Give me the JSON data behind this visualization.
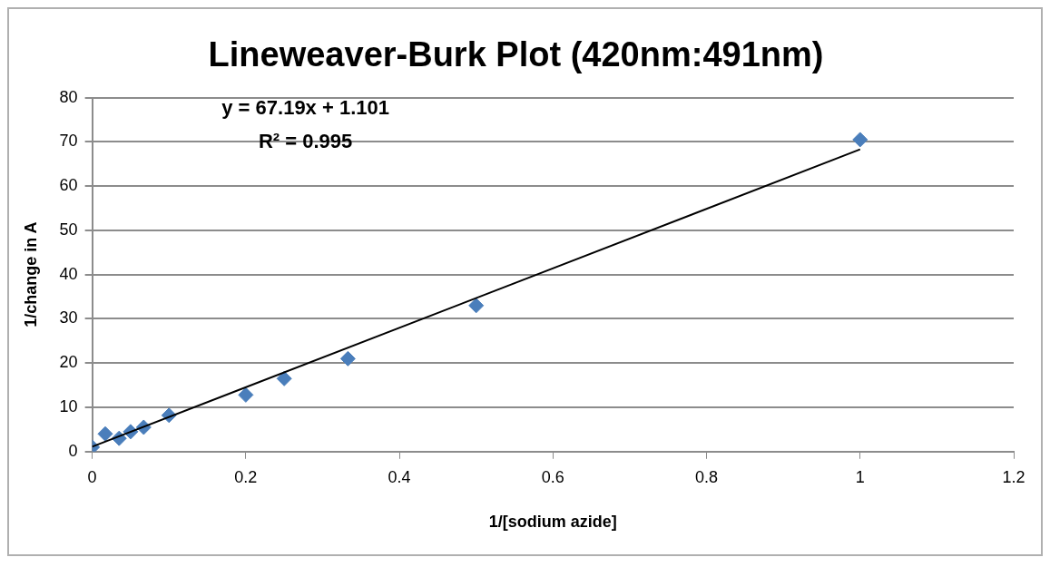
{
  "chart_data": {
    "type": "scatter",
    "title": "Lineweaver-Burk Plot (420nm:491nm)",
    "xlabel": "1/[sodium azide]",
    "ylabel": "1/change in A",
    "x": [
      0,
      0.017,
      0.035,
      0.05,
      0.067,
      0.1,
      0.2,
      0.25,
      0.333,
      0.5,
      1
    ],
    "series": [
      {
        "color": "#4a7ebb",
        "marker": "diamond",
        "values": [
          1,
          4,
          3,
          4.5,
          5.5,
          8.2,
          12.8,
          16.5,
          21,
          33,
          70.5
        ]
      },
      {
        "type": "line",
        "color": "#000000",
        "x": [
          0,
          1
        ],
        "values": [
          1.1,
          68.3
        ],
        "marker": "none"
      }
    ],
    "annotations": [
      "y = 67.19x + 1.101",
      "R² = 0.995"
    ],
    "xlim": [
      0,
      1.2
    ],
    "xticks": [
      0,
      0.2,
      0.4,
      0.6,
      0.8,
      1,
      1.2
    ],
    "ylim": [
      0,
      80
    ],
    "yticks": [
      0,
      10,
      20,
      30,
      40,
      50,
      60,
      70,
      80
    ],
    "grid": "y",
    "legend": false
  }
}
